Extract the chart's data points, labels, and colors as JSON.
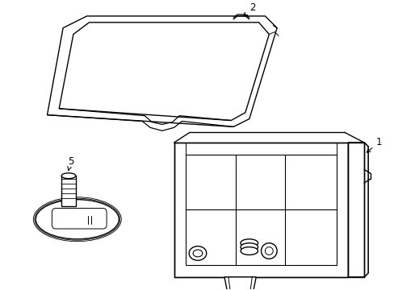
{
  "background_color": "#ffffff",
  "line_color": "#000000",
  "line_width": 1.0,
  "figsize": [
    4.89,
    3.6
  ],
  "dpi": 100,
  "label_fontsize": 8.5
}
